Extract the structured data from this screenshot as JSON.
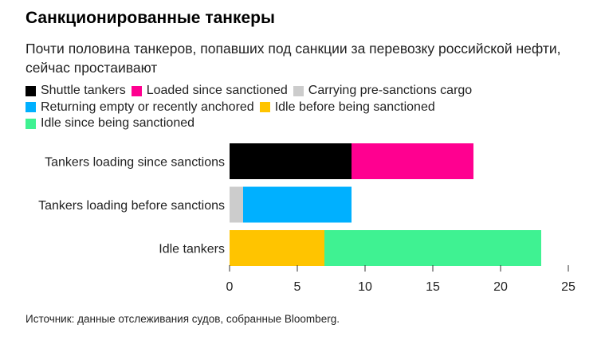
{
  "title": "Санкционированные танкеры",
  "subtitle": "Почти половина танкеров, попавших под санкции за перевозку российской нефти, сейчас простаивают",
  "source": "Источник: данные отслеживания судов, собранные Bloomberg.",
  "colors": {
    "Shuttle tankers": "#000000",
    "Loaded since sanctioned": "#ff0090",
    "Carrying pre-sanctions cargo": "#cccccc",
    "Returning empty or recently anchored": "#00b0ff",
    "Idle before being sanctioned": "#ffc400",
    "Idle since being sanctioned": "#3ff292"
  },
  "chart_data": {
    "type": "bar",
    "orientation": "horizontal",
    "stacked": true,
    "categories": [
      "Tankers loading since sanctions",
      "Tankers loading before sanctions",
      "Idle tankers"
    ],
    "series": [
      {
        "name": "Shuttle tankers",
        "values": [
          9,
          0,
          0
        ]
      },
      {
        "name": "Loaded since sanctioned",
        "values": [
          9,
          0,
          0
        ]
      },
      {
        "name": "Carrying pre-sanctions cargo",
        "values": [
          0,
          1,
          0
        ]
      },
      {
        "name": "Returning empty or recently anchored",
        "values": [
          0,
          8,
          0
        ]
      },
      {
        "name": "Idle before being sanctioned",
        "values": [
          0,
          0,
          7
        ]
      },
      {
        "name": "Idle since being sanctioned",
        "values": [
          0,
          0,
          16
        ]
      }
    ],
    "xlim": [
      0,
      25
    ],
    "xticks": [
      0,
      5,
      10,
      15,
      20,
      25
    ],
    "grid": false,
    "legend_position": "top-left"
  }
}
